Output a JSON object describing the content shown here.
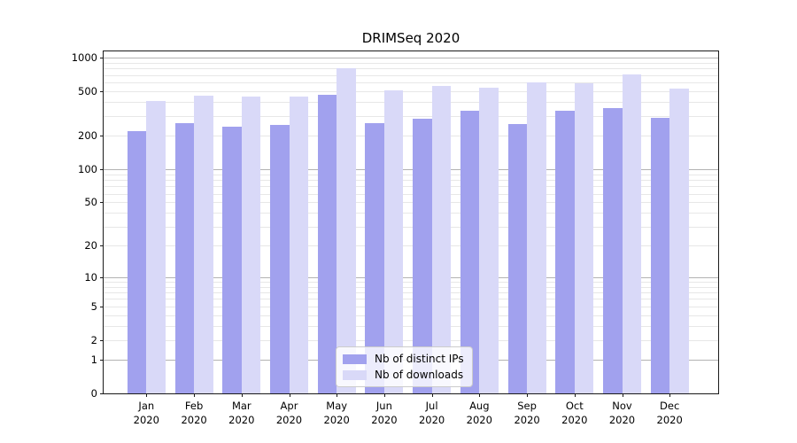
{
  "chart_data": {
    "type": "bar",
    "title": "DRIMSeq 2020",
    "categories": [
      "Jan",
      "Feb",
      "Mar",
      "Apr",
      "May",
      "Jun",
      "Jul",
      "Aug",
      "Sep",
      "Oct",
      "Nov",
      "Dec"
    ],
    "category_year": "2020",
    "series": [
      {
        "name": "Nb of distinct IPs",
        "color": "#a1a1ee",
        "values": [
          220,
          260,
          242,
          252,
          465,
          258,
          285,
          335,
          253,
          335,
          356,
          292
        ]
      },
      {
        "name": "Nb of downloads",
        "color": "#d9d9f8",
        "values": [
          410,
          462,
          450,
          448,
          800,
          515,
          558,
          540,
          605,
          594,
          715,
          528
        ]
      }
    ],
    "yscale": "log1p",
    "ylim": [
      0,
      1140
    ],
    "yticks": [
      0,
      1,
      2,
      5,
      10,
      20,
      50,
      100,
      200,
      500,
      1000
    ],
    "grid_major": [
      1,
      10,
      100,
      1000
    ],
    "grid_minor": [
      2,
      3,
      4,
      5,
      6,
      7,
      8,
      9,
      20,
      30,
      40,
      50,
      60,
      70,
      80,
      90,
      200,
      300,
      400,
      500,
      600,
      700,
      800,
      900
    ],
    "xlim": [
      -0.9,
      12.02
    ],
    "bar_width": 0.4,
    "bar_offsets": [
      -0.2,
      0.2
    ],
    "legend_position": "lower center",
    "grid": "on",
    "colors": {
      "grid_major": "#b2b2b2",
      "grid_minor": "#e7e7e7",
      "axis": "#1a1a1a",
      "text": "#000000"
    }
  }
}
